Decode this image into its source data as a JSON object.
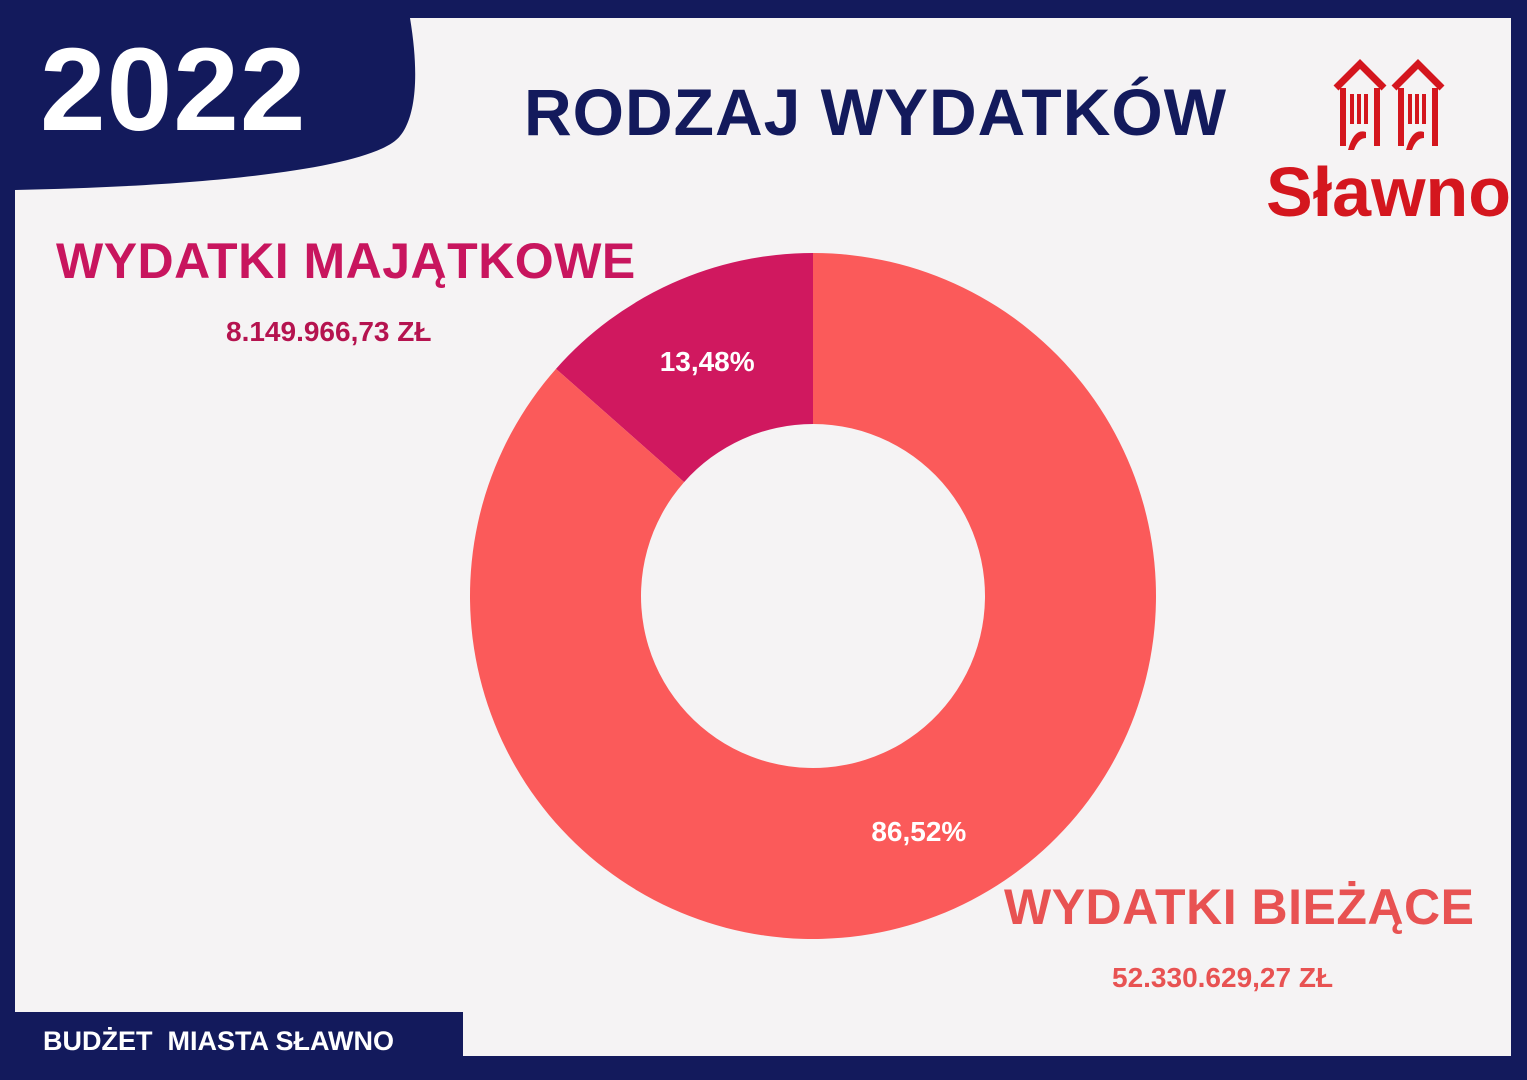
{
  "header": {
    "year": "2022",
    "title": "RODZAJ WYDATKÓW"
  },
  "logo": {
    "text": "Sławno",
    "icon": "gate-towers-icon",
    "color": "#d4161e"
  },
  "footer": {
    "text": "BUDŻET  MIASTA SŁAWNO"
  },
  "colors": {
    "navy": "#131a5c",
    "panel": "#f5f3f4",
    "capital": "#d0185f",
    "current": "#fb5a5a"
  },
  "chart_data": {
    "type": "pie",
    "donut": true,
    "title": "RODZAJ WYDATKÓW",
    "slices": [
      {
        "label": "WYDATKI MAJĄTKOWE",
        "amount": "8.149.966,73 ZŁ",
        "value": 13.48,
        "percent_label": "13,48%",
        "color": "#d0185f"
      },
      {
        "label": "WYDATKI BIEŻĄCE",
        "amount": "52.330.629,27 ZŁ",
        "value": 86.52,
        "percent_label": "86,52%",
        "color": "#fb5a5a"
      }
    ]
  }
}
